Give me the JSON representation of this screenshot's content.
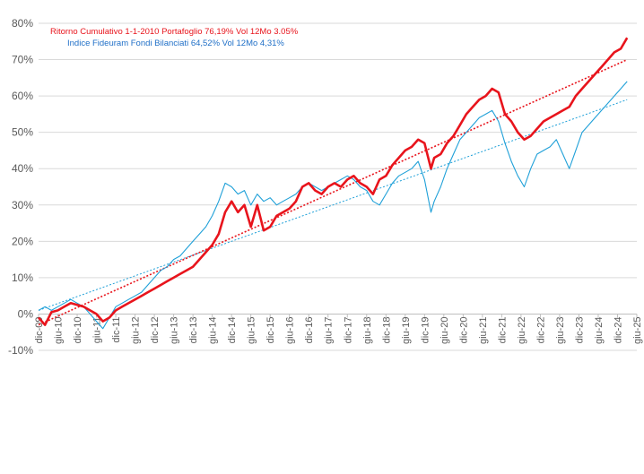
{
  "chart_data": {
    "type": "line",
    "title": "",
    "xlabel": "",
    "ylabel": "",
    "legend_position": "top-left",
    "grid": true,
    "ylim": [
      -10,
      80
    ],
    "y_ticks": [
      "-10%",
      "0%",
      "10%",
      "20%",
      "30%",
      "40%",
      "50%",
      "60%",
      "70%",
      "80%"
    ],
    "x_ticks": [
      "dic-09",
      "giu-10",
      "dic-10",
      "giu-11",
      "dic-11",
      "giu-12",
      "dic-12",
      "giu-13",
      "dic-13",
      "giu-14",
      "dic-14",
      "giu-15",
      "dic-15",
      "giu-16",
      "dic-16",
      "giu-17",
      "dic-17",
      "giu-18",
      "dic-18",
      "giu-19",
      "dic-19",
      "giu-20",
      "dic-20",
      "giu-21",
      "dic-21",
      "giu-22",
      "dic-22",
      "giu-23",
      "dic-23",
      "giu-24",
      "dic-24",
      "giu-25"
    ],
    "x_range": [
      "2009-12",
      "2025-06"
    ],
    "series": [
      {
        "name": "Ritorno Cumulativo 1-1-2010 Portafoglio 76,19% Vol 12Mo 3.05%",
        "color": "#e8141c",
        "style": "solid-thick",
        "x": [
          "2009-12",
          "2010-02",
          "2010-04",
          "2010-06",
          "2010-08",
          "2010-10",
          "2010-12",
          "2011-02",
          "2011-04",
          "2011-06",
          "2011-08",
          "2011-10",
          "2011-12",
          "2012-02",
          "2012-04",
          "2012-06",
          "2012-08",
          "2012-10",
          "2012-12",
          "2013-02",
          "2013-04",
          "2013-06",
          "2013-08",
          "2013-10",
          "2013-12",
          "2014-02",
          "2014-04",
          "2014-06",
          "2014-08",
          "2014-10",
          "2014-12",
          "2015-02",
          "2015-04",
          "2015-06",
          "2015-08",
          "2015-10",
          "2015-12",
          "2016-02",
          "2016-04",
          "2016-06",
          "2016-08",
          "2016-10",
          "2016-12",
          "2017-02",
          "2017-04",
          "2017-06",
          "2017-08",
          "2017-10",
          "2017-12",
          "2018-02",
          "2018-04",
          "2018-06",
          "2018-08",
          "2018-10",
          "2018-12",
          "2019-02",
          "2019-04",
          "2019-06",
          "2019-08",
          "2019-10",
          "2019-12",
          "2020-02",
          "2020-03",
          "2020-05",
          "2020-07",
          "2020-09",
          "2020-11",
          "2021-01",
          "2021-03",
          "2021-05",
          "2021-07",
          "2021-09",
          "2021-11",
          "2022-01",
          "2022-03",
          "2022-05",
          "2022-07",
          "2022-09",
          "2022-11",
          "2023-01",
          "2023-03",
          "2023-05",
          "2023-07",
          "2023-09",
          "2023-11",
          "2024-01",
          "2024-03",
          "2024-05",
          "2024-07",
          "2024-09",
          "2024-11",
          "2025-01",
          "2025-03"
        ],
        "y": [
          -1,
          -3,
          0.5,
          1,
          2,
          3,
          2.5,
          2,
          1,
          0,
          -2,
          -1,
          1,
          2,
          3,
          4,
          5,
          6,
          7,
          8,
          9,
          10,
          11,
          12,
          13,
          15,
          17,
          19,
          22,
          28,
          31,
          28,
          30,
          24,
          30,
          23,
          24,
          27,
          28,
          29,
          31,
          35,
          36,
          34,
          33,
          35,
          36,
          35,
          37,
          38,
          36,
          35,
          33,
          37,
          38,
          41,
          43,
          45,
          46,
          48,
          47,
          40,
          43,
          44,
          47,
          49,
          52,
          55,
          57,
          59,
          60,
          62,
          61,
          55,
          53,
          50,
          48,
          49,
          51,
          53,
          54,
          55,
          56,
          57,
          60,
          62,
          64,
          66,
          68,
          70,
          72,
          73,
          76
        ]
      },
      {
        "name": "Indice Fideuram Fondi Bilanciati 64,52% Vol 12Mo 4,31%",
        "color": "#1fa0d8",
        "style": "solid-thin",
        "x": [
          "2009-12",
          "2010-02",
          "2010-04",
          "2010-06",
          "2010-08",
          "2010-10",
          "2010-12",
          "2011-02",
          "2011-04",
          "2011-06",
          "2011-08",
          "2011-10",
          "2011-12",
          "2012-02",
          "2012-04",
          "2012-06",
          "2012-08",
          "2012-10",
          "2012-12",
          "2013-02",
          "2013-04",
          "2013-06",
          "2013-08",
          "2013-10",
          "2013-12",
          "2014-02",
          "2014-04",
          "2014-06",
          "2014-08",
          "2014-10",
          "2014-12",
          "2015-02",
          "2015-04",
          "2015-06",
          "2015-08",
          "2015-10",
          "2015-12",
          "2016-02",
          "2016-04",
          "2016-06",
          "2016-08",
          "2016-10",
          "2016-12",
          "2017-02",
          "2017-04",
          "2017-06",
          "2017-08",
          "2017-10",
          "2017-12",
          "2018-02",
          "2018-04",
          "2018-06",
          "2018-08",
          "2018-10",
          "2018-12",
          "2019-02",
          "2019-04",
          "2019-06",
          "2019-08",
          "2019-10",
          "2019-12",
          "2020-02",
          "2020-03",
          "2020-05",
          "2020-07",
          "2020-09",
          "2020-11",
          "2021-01",
          "2021-03",
          "2021-05",
          "2021-07",
          "2021-09",
          "2021-11",
          "2022-01",
          "2022-03",
          "2022-05",
          "2022-07",
          "2022-09",
          "2022-11",
          "2023-01",
          "2023-03",
          "2023-05",
          "2023-07",
          "2023-09",
          "2023-11",
          "2024-01",
          "2024-03",
          "2024-05",
          "2024-07",
          "2024-09",
          "2024-11",
          "2025-01",
          "2025-03"
        ],
        "y": [
          1,
          2,
          1,
          2,
          3,
          4,
          3,
          2,
          0,
          -2,
          -4,
          -1,
          2,
          3,
          4,
          5,
          6,
          8,
          10,
          12,
          13,
          15,
          16,
          18,
          20,
          22,
          24,
          27,
          31,
          36,
          35,
          33,
          34,
          30,
          33,
          31,
          32,
          30,
          31,
          32,
          33,
          35,
          36,
          35,
          34,
          35,
          36,
          37,
          38,
          37,
          35,
          34,
          31,
          30,
          33,
          36,
          38,
          39,
          40,
          42,
          37,
          28,
          31,
          35,
          40,
          44,
          48,
          50,
          52,
          54,
          55,
          56,
          53,
          47,
          42,
          38,
          35,
          40,
          44,
          45,
          46,
          48,
          44,
          40,
          45,
          50,
          52,
          54,
          56,
          58,
          60,
          62,
          64
        ]
      },
      {
        "name": "",
        "color": "#e8141c",
        "style": "dotted-trend",
        "x": [
          "2009-12",
          "2025-03"
        ],
        "y": [
          -3,
          70
        ]
      },
      {
        "name": "",
        "color": "#1fa0d8",
        "style": "dotted-trend",
        "x": [
          "2009-12",
          "2025-03"
        ],
        "y": [
          1,
          59
        ]
      }
    ]
  }
}
